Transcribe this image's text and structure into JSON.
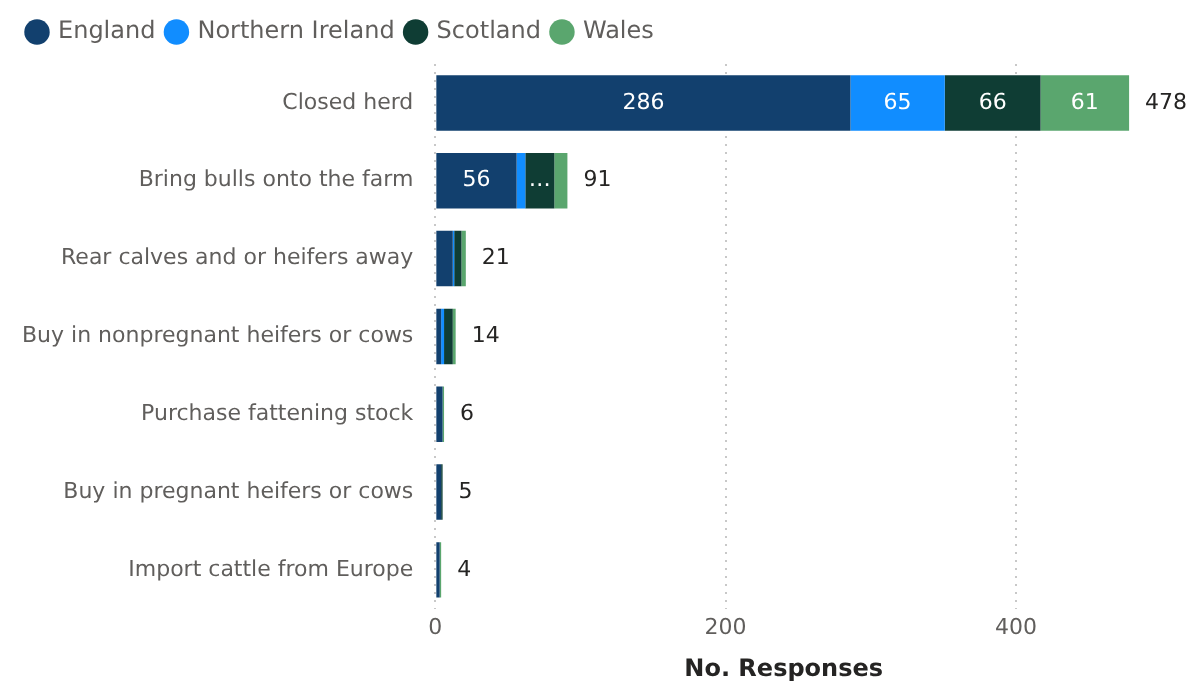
{
  "chart_data": {
    "type": "bar",
    "orientation": "horizontal",
    "stacked": true,
    "xlabel": "No. Responses",
    "categories": [
      "Closed herd",
      "Bring bulls onto the farm",
      "Rear calves and or heifers away",
      "Buy in nonpregnant heifers or cows",
      "Purchase fattening stock",
      "Buy in pregnant heifers or cows",
      "Import cattle from Europe"
    ],
    "series": [
      {
        "name": "England",
        "color": "#12406e",
        "values": [
          286,
          56,
          12,
          4,
          5,
          4,
          3
        ],
        "value_labels": [
          "286",
          "56",
          null,
          null,
          null,
          null,
          null
        ]
      },
      {
        "name": "Northern Ireland",
        "color": "#118dff",
        "values": [
          65,
          6,
          1,
          2,
          0,
          0,
          0
        ],
        "value_labels": [
          "65",
          null,
          null,
          null,
          null,
          null,
          null
        ]
      },
      {
        "name": "Scotland",
        "color": "#0f3d34",
        "values": [
          66,
          20,
          5,
          6,
          0,
          1,
          0
        ],
        "value_labels": [
          "66",
          "…",
          null,
          null,
          null,
          null,
          null
        ]
      },
      {
        "name": "Wales",
        "color": "#5aa66e",
        "values": [
          61,
          9,
          3,
          2,
          1,
          0,
          1
        ],
        "value_labels": [
          "61",
          null,
          null,
          null,
          null,
          null,
          null
        ]
      }
    ],
    "totals": [
      "478",
      "91",
      "21",
      "14",
      "6",
      "5",
      "4"
    ],
    "xlim": [
      0,
      480
    ],
    "xticks": [
      0,
      200,
      400
    ],
    "grid": "x",
    "legend": "top left"
  }
}
